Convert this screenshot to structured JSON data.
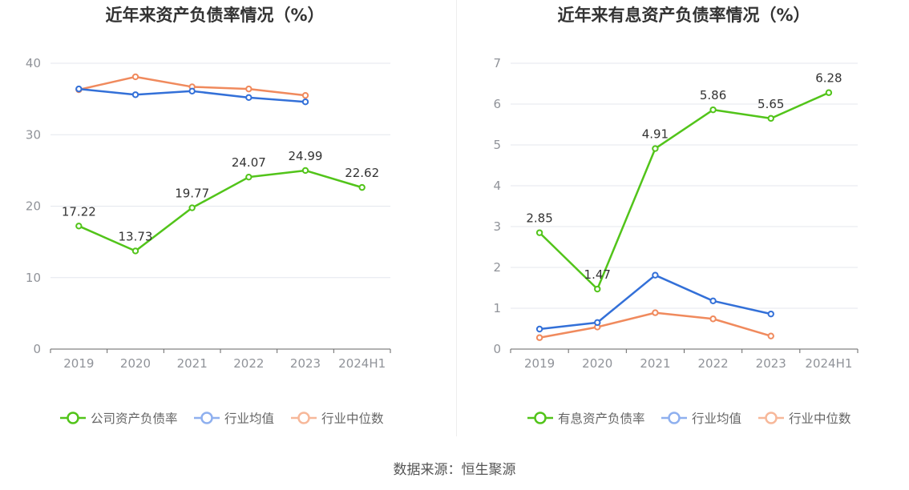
{
  "colors": {
    "green": "#52c41a",
    "blue": "#3370d8",
    "orange": "#f08a5d",
    "legend_blue": "#8fb0ef",
    "legend_orange": "#f7b89a",
    "title": "#333333",
    "tick": "#909399",
    "grid": "#e4e7ed",
    "axis": "#666666",
    "label": "#333333"
  },
  "source": "数据来源：恒生聚源",
  "chart_data": [
    {
      "type": "line",
      "title": "近年来资产负债率情况（%）",
      "categories": [
        "2019",
        "2020",
        "2021",
        "2022",
        "2023",
        "2024H1"
      ],
      "ylim": [
        0,
        40
      ],
      "yticks": [
        0,
        10,
        20,
        30,
        40
      ],
      "grid": true,
      "legend_position": "bottom-center",
      "series": [
        {
          "name": "公司资产负债率",
          "color_key": "green",
          "legend_color_key": "green",
          "show_labels": true,
          "values": [
            17.22,
            13.73,
            19.77,
            24.07,
            24.99,
            22.62
          ]
        },
        {
          "name": "行业均值",
          "color_key": "blue",
          "legend_color_key": "legend_blue",
          "show_labels": false,
          "values": [
            36.4,
            35.6,
            36.1,
            35.2,
            34.6,
            null
          ]
        },
        {
          "name": "行业中位数",
          "color_key": "orange",
          "legend_color_key": "legend_orange",
          "show_labels": false,
          "values": [
            36.3,
            38.1,
            36.7,
            36.4,
            35.5,
            null
          ]
        }
      ]
    },
    {
      "type": "line",
      "title": "近年来有息资产负债率情况（%）",
      "categories": [
        "2019",
        "2020",
        "2021",
        "2022",
        "2023",
        "2024H1"
      ],
      "ylim": [
        0,
        7
      ],
      "yticks": [
        0,
        1,
        2,
        3,
        4,
        5,
        6,
        7
      ],
      "grid": true,
      "legend_position": "bottom-center",
      "series": [
        {
          "name": "有息资产负债率",
          "color_key": "green",
          "legend_color_key": "green",
          "show_labels": true,
          "values": [
            2.85,
            1.47,
            4.91,
            5.86,
            5.65,
            6.28
          ]
        },
        {
          "name": "行业均值",
          "color_key": "blue",
          "legend_color_key": "legend_blue",
          "show_labels": false,
          "values": [
            0.49,
            0.65,
            1.81,
            1.18,
            0.86,
            null
          ]
        },
        {
          "name": "行业中位数",
          "color_key": "orange",
          "legend_color_key": "legend_orange",
          "show_labels": false,
          "values": [
            0.28,
            0.54,
            0.89,
            0.74,
            0.32,
            null
          ]
        }
      ]
    }
  ]
}
